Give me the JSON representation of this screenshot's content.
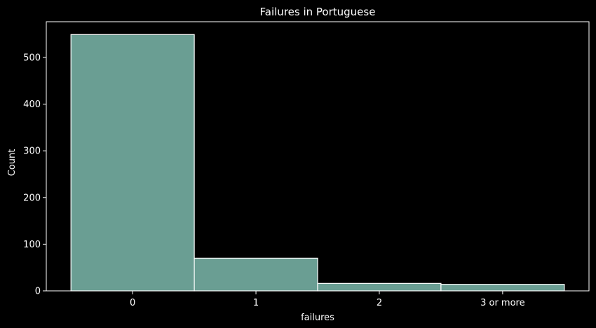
{
  "chart_data": {
    "type": "bar",
    "title": "Failures in Portuguese",
    "xlabel": "failures",
    "ylabel": "Count",
    "categories": [
      "0",
      "1",
      "2",
      "3 or more"
    ],
    "values": [
      549,
      70,
      16,
      14
    ],
    "ylim": [
      0,
      576.5
    ],
    "yticks": [
      0,
      100,
      200,
      300,
      400,
      500
    ],
    "bar_color": "#6a9e93",
    "bar_edge_color": "#ffffff",
    "background_color": "#000000",
    "text_color": "#ffffff",
    "grid": false,
    "legend": false
  }
}
